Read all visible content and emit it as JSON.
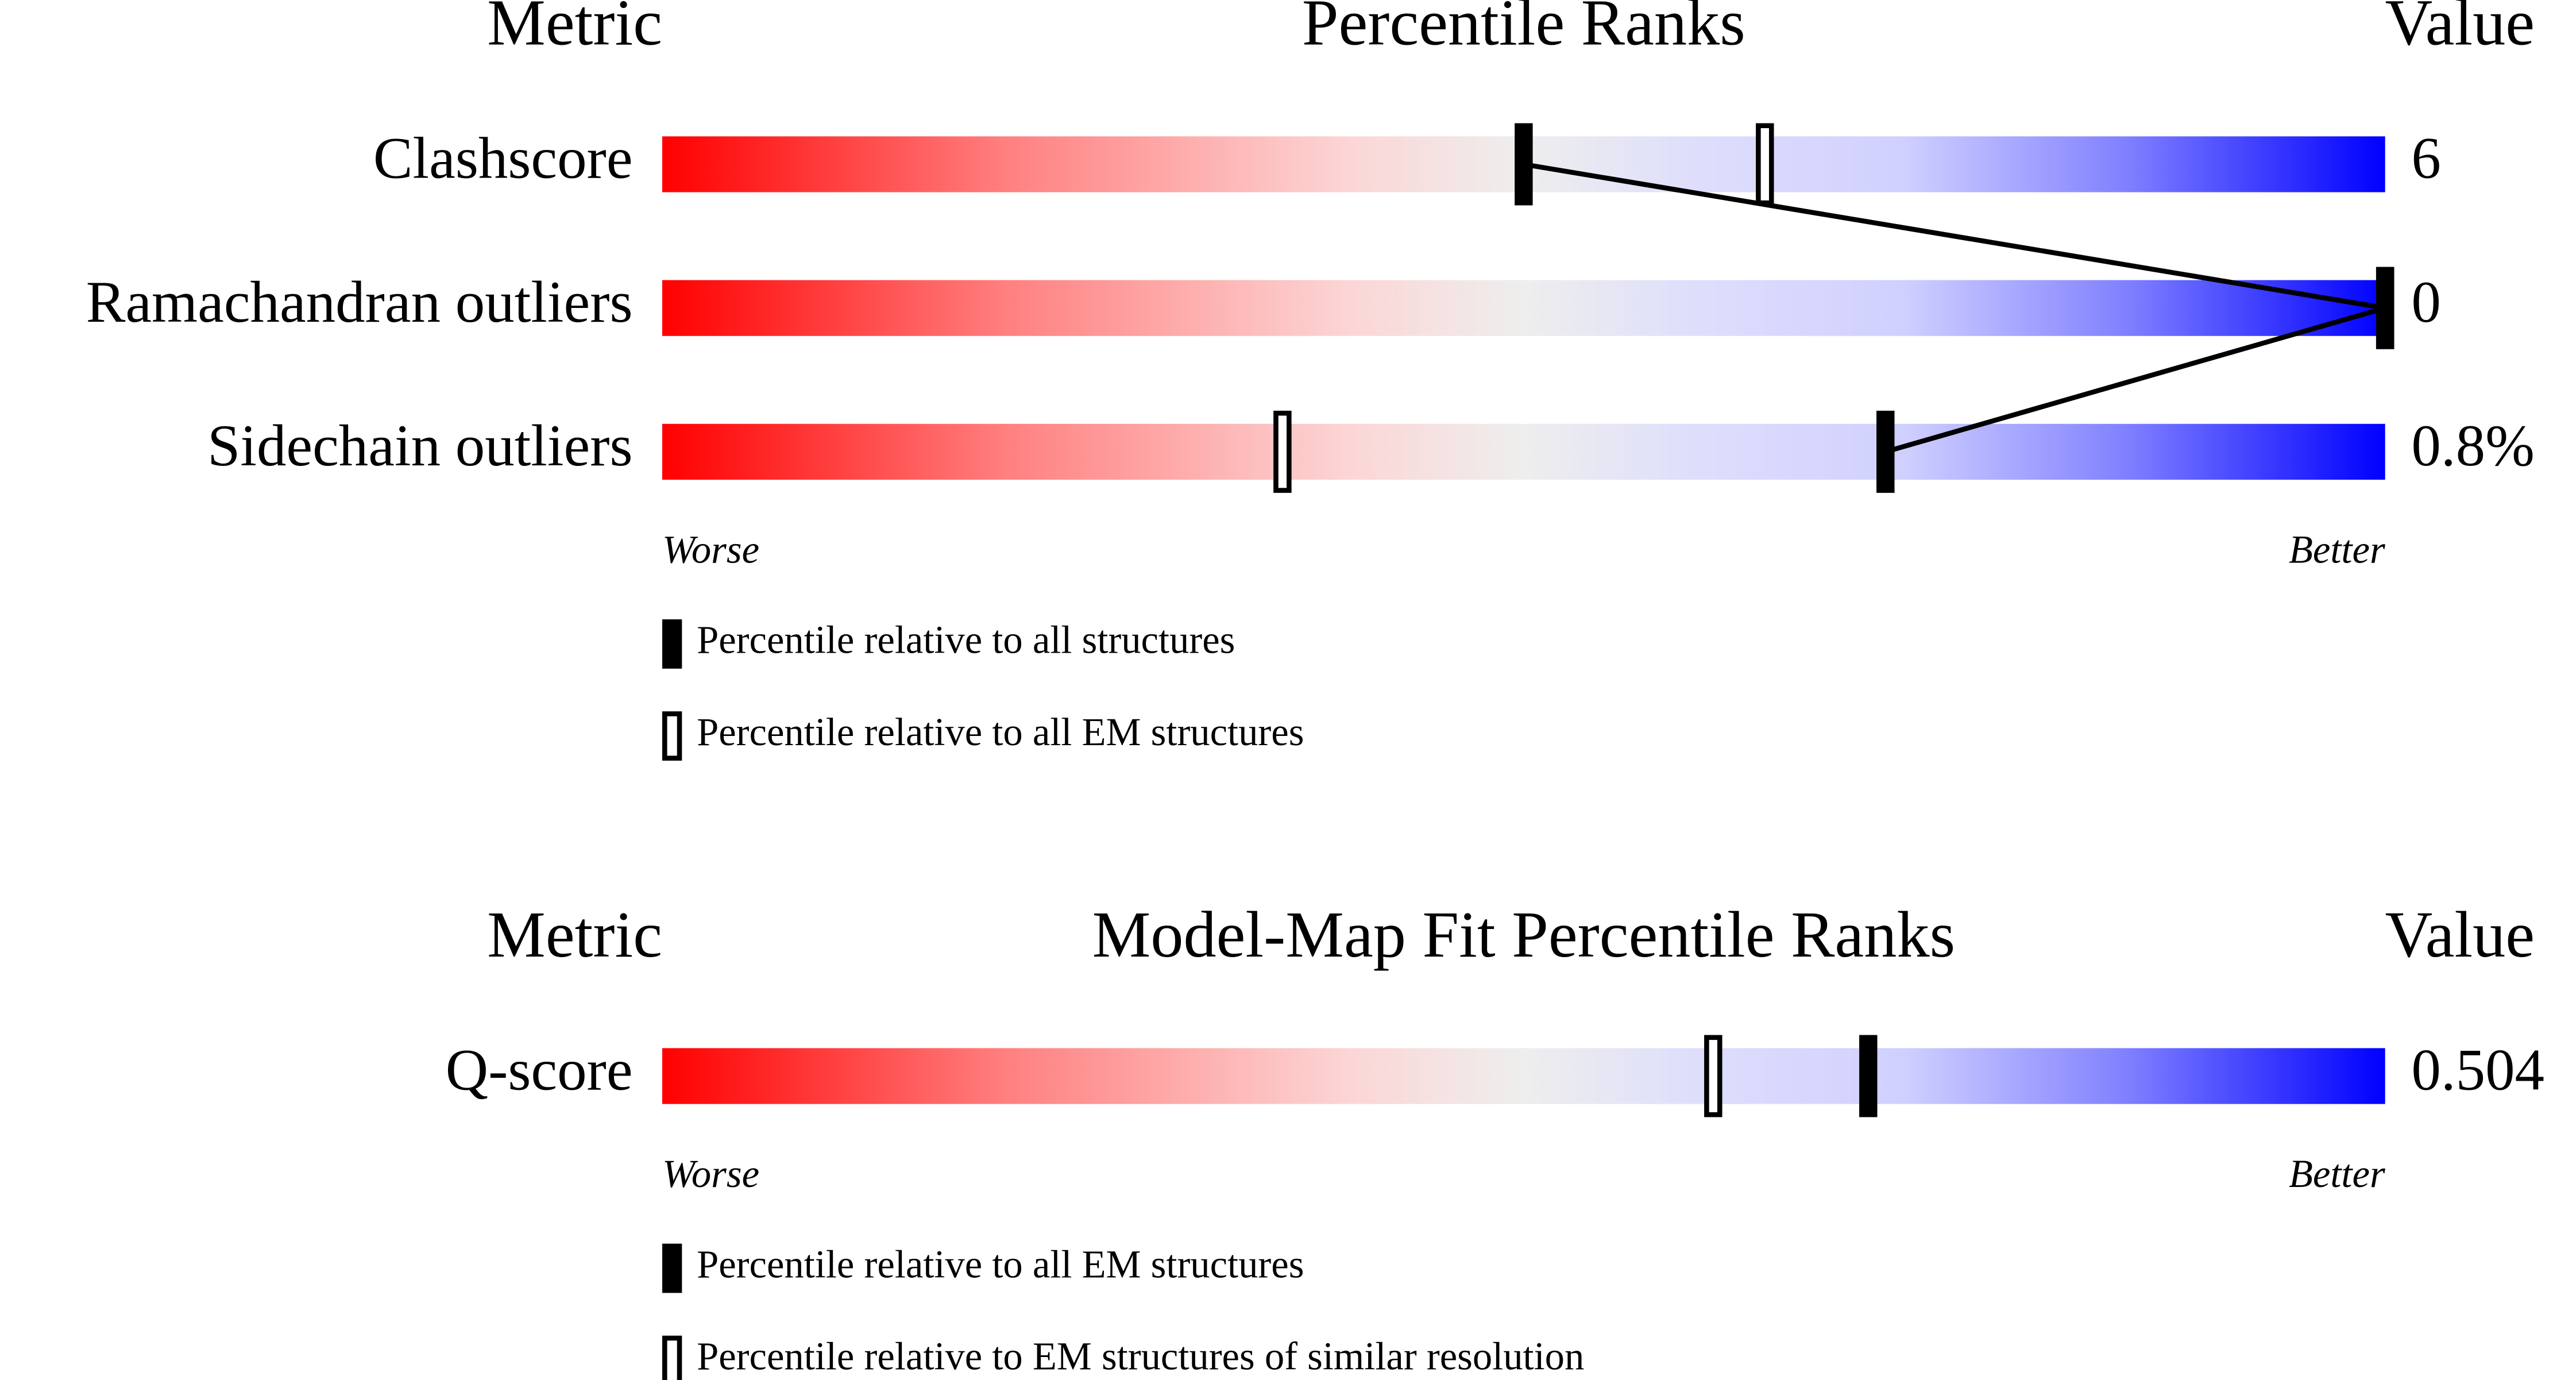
{
  "chart_data": [
    {
      "type": "percentile",
      "title": "Percentile Ranks",
      "metric_header": "Metric",
      "value_header": "Value",
      "categories": [
        "Clashscore",
        "Ramachandran outliers",
        "Sidechain outliers"
      ],
      "values": [
        6,
        0,
        0.8
      ],
      "value_labels": [
        "6",
        "0",
        "0.8%"
      ],
      "xlim": [
        0,
        100
      ],
      "axis_labels": [
        "Worse",
        "Better"
      ],
      "series": [
        {
          "name": "Percentile relative to all structures",
          "color": "#000000",
          "style": "filled",
          "connected": true,
          "values": [
            50,
            100,
            71
          ]
        },
        {
          "name": "Percentile relative to all EM structures",
          "color": "#000000",
          "style": "hollow",
          "connected": false,
          "values": [
            64,
            100,
            36
          ]
        }
      ]
    },
    {
      "type": "percentile",
      "title": "Model-Map Fit Percentile Ranks",
      "metric_header": "Metric",
      "value_header": "Value",
      "categories": [
        "Q-score"
      ],
      "values": [
        0.504
      ],
      "xlim": [
        0,
        100
      ],
      "axis_labels": [
        "Worse",
        "Better"
      ],
      "series": [
        {
          "name": "Percentile relative to all EM structures",
          "color": "#000000",
          "style": "filled",
          "connected": true,
          "values": [
            70
          ]
        },
        {
          "name": "Percentile relative to EM structures of similar resolution",
          "color": "#000000",
          "style": "hollow",
          "connected": false,
          "values": [
            61
          ]
        }
      ]
    }
  ]
}
